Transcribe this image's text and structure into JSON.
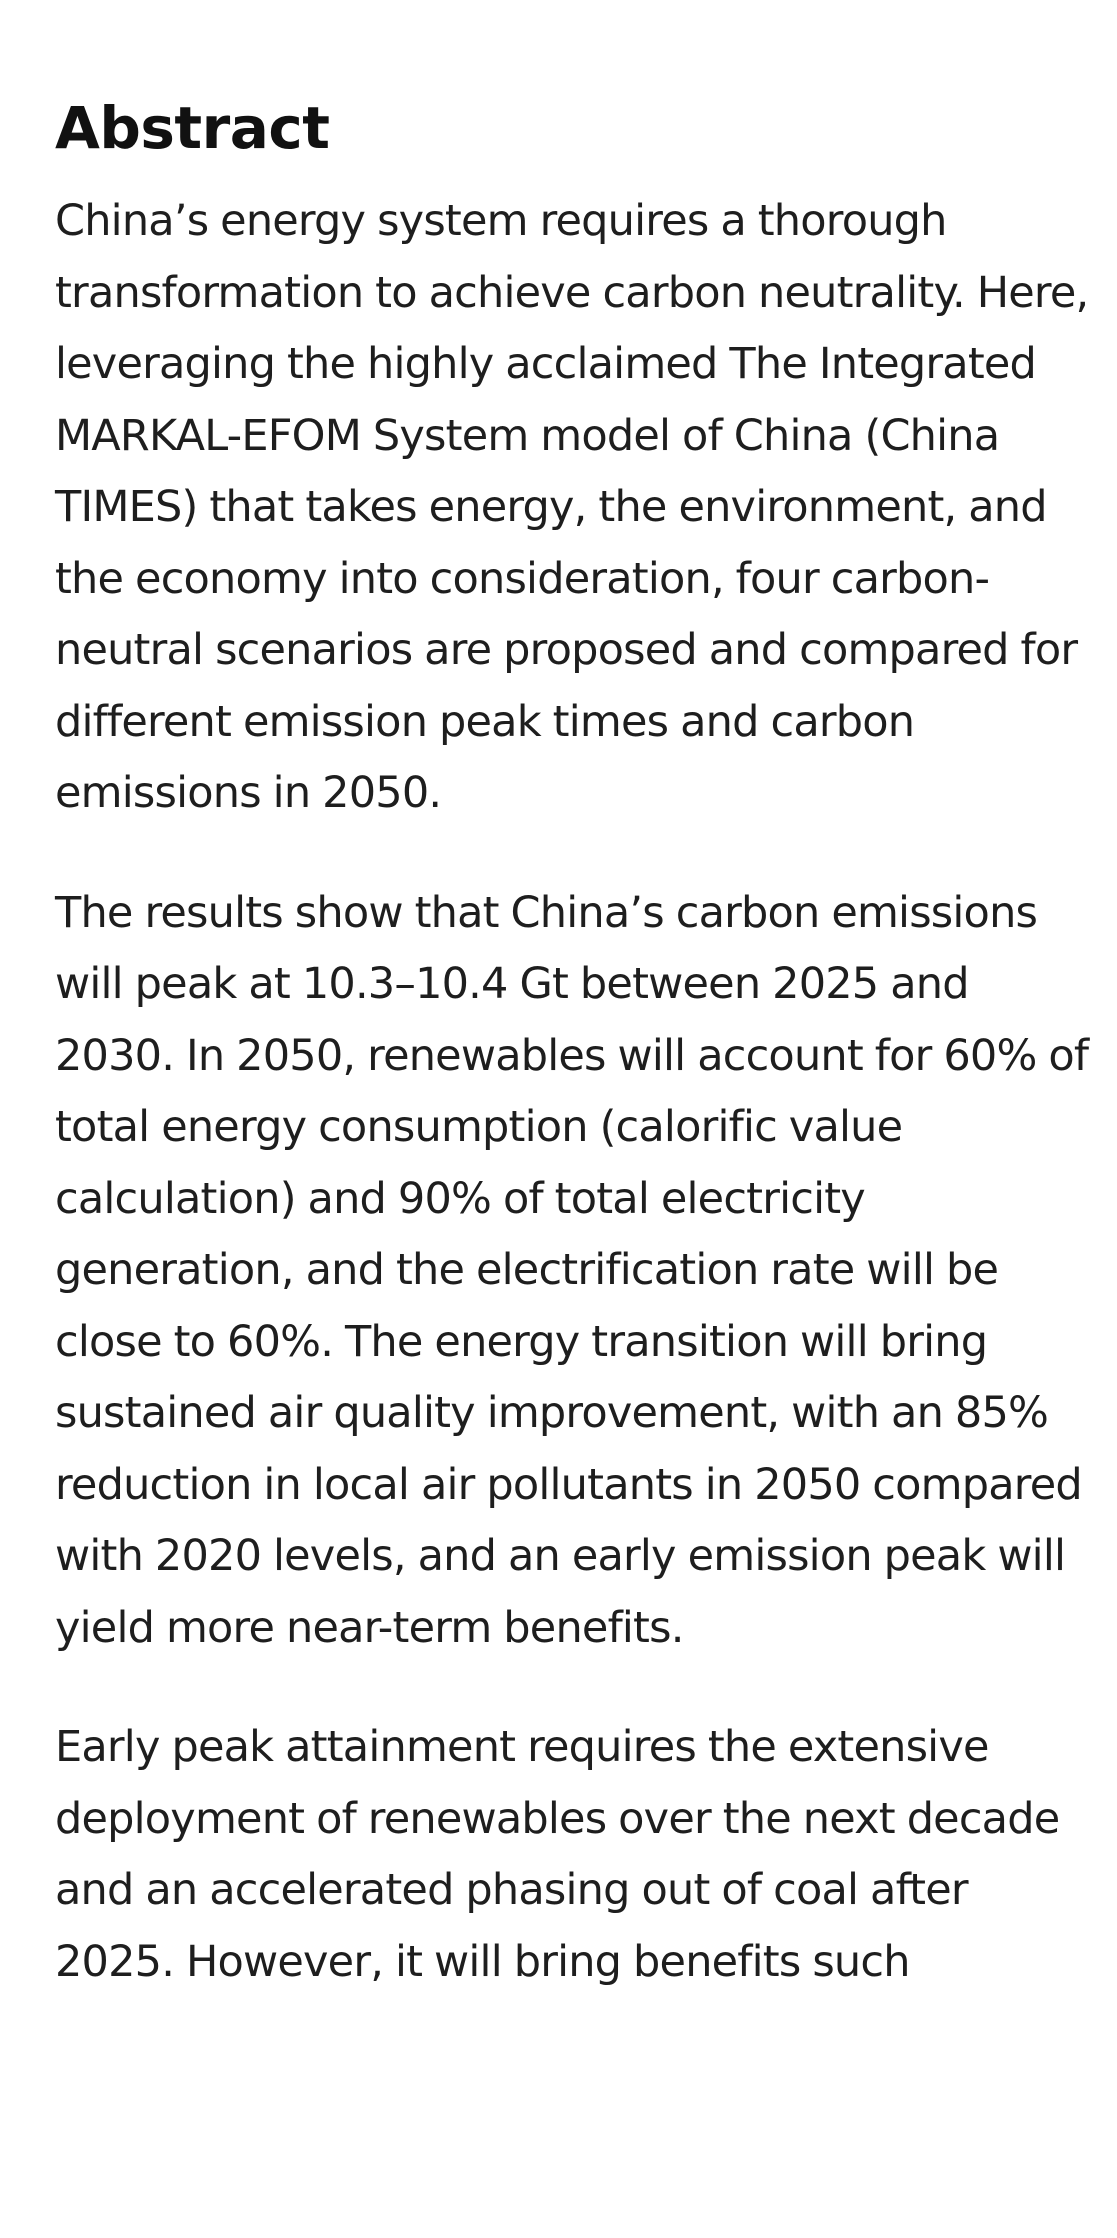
{
  "abstract": {
    "heading": "Abstract",
    "paragraphs": [
      "China’s energy system requires a thorough transformation to achieve carbon neutrality. Here, leveraging the highly acclaimed The Integrated MARKAL-EFOM System model of China (China TIMES) that takes energy, the environment, and the economy into consideration, four carbon-neutral scenarios are proposed and compared for different emission peak times and carbon emissions in 2050.",
      "The results show that China’s carbon emissions will peak at 10.3–10.4 Gt between 2025 and 2030. In 2050, renewables will account for 60% of total energy consumption (calorific value calculation) and 90% of total electricity generation, and the electrification rate will be close to 60%. The energy transition will bring sustained air quality improvement, with an 85% reduction in local air pollutants in 2050 compared with 2020 levels, and an early emission peak will yield more near-term benefits.",
      "Early peak attainment requires the extensive deployment of renewables over the next decade and an accelerated phasing out of coal after 2025. However, it will bring benefits such"
    ]
  }
}
